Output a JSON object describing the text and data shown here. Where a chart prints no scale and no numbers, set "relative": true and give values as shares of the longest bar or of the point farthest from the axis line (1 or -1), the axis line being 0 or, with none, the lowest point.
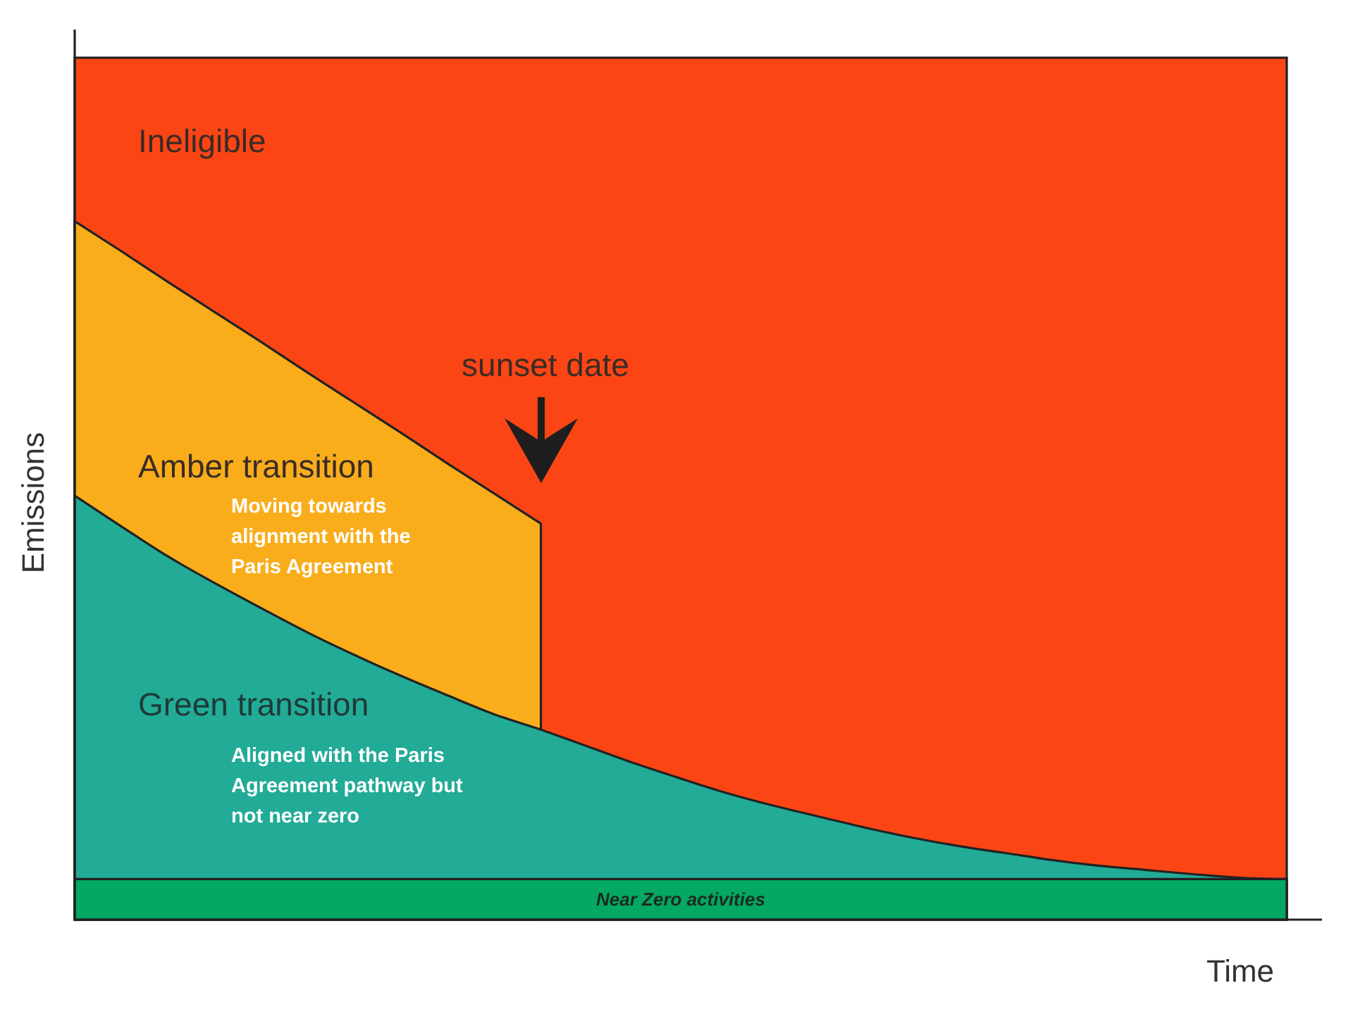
{
  "chart_data": {
    "type": "area",
    "relative": true,
    "xlabel": "Time",
    "ylabel": "Emissions",
    "categories": [
      null,
      null,
      null,
      null,
      null,
      null,
      null,
      null,
      null,
      null,
      null,
      null,
      null,
      null,
      null,
      null,
      null,
      null,
      null,
      null,
      null,
      null,
      null,
      null,
      null,
      null,
      null
    ],
    "series": [
      {
        "name": "Amber transition",
        "color": "#f9ad1b",
        "values": [
          1,
          0.957,
          0.913,
          0.87,
          0.827,
          0.783,
          0.74,
          0.697,
          0.653,
          0.61,
          0.567,
          null,
          null,
          null,
          null,
          null,
          null,
          null,
          null,
          null,
          null,
          null,
          null,
          null,
          null,
          null,
          null
        ]
      },
      {
        "name": "Green transition",
        "color": "#22ab97",
        "values": [
          0.607,
          0.563,
          0.52,
          0.482,
          0.446,
          0.411,
          0.379,
          0.349,
          0.321,
          0.294,
          0.272,
          0.248,
          0.224,
          0.202,
          0.181,
          0.163,
          0.147,
          0.131,
          0.117,
          0.105,
          0.095,
          0.085,
          0.077,
          0.071,
          0.065,
          0.06,
          0.058
        ]
      },
      {
        "name": "Near Zero activities",
        "color": "#03a862",
        "values": [
          0.058,
          0.058,
          0.058,
          0.058,
          0.058,
          0.058,
          0.058,
          0.058,
          0.058,
          0.058,
          0.058,
          0.058,
          0.058,
          0.058,
          0.058,
          0.058,
          0.058,
          0.058,
          0.058,
          0.058,
          0.058,
          0.058,
          0.058,
          0.058,
          0.058,
          0.058,
          0.058
        ]
      }
    ],
    "bands": [
      {
        "axis": "y",
        "from": 0,
        "to": 1.234,
        "label": "Ineligible",
        "color": "#fc4515"
      }
    ],
    "annotations": [
      "sunset date",
      "Moving towards alignment with the Paris Agreement",
      "Aligned with the Paris Agreement pathway but not near zero"
    ]
  }
}
